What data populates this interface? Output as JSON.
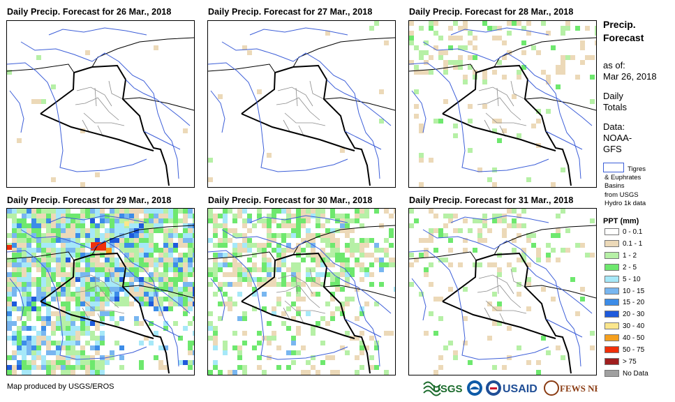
{
  "panels": [
    {
      "title": "Daily Precip. Forecast for 26 Mar., 2018",
      "intensity": 0
    },
    {
      "title": "Daily Precip. Forecast for 27 Mar., 2018",
      "intensity": 0
    },
    {
      "title": "Daily Precip. Forecast for 28 Mar., 2018",
      "intensity": 1
    },
    {
      "title": "Daily Precip. Forecast for 29 Mar., 2018",
      "intensity": 3
    },
    {
      "title": "Daily Precip. Forecast for 30 Mar., 2018",
      "intensity": 2
    },
    {
      "title": "Daily Precip. Forecast for 31 Mar., 2018",
      "intensity": 1
    }
  ],
  "sidebar": {
    "title_line1": "Precip.",
    "title_line2": "Forecast",
    "asof_label": "as of:",
    "asof_date": "Mar 26, 2018",
    "totals_line1": "Daily",
    "totals_line2": "Totals",
    "data_line1": "Data:",
    "data_line2": "NOAA-",
    "data_line3": "GFS",
    "basin_line1": "Tigres",
    "basin_line2": "& Euphrates",
    "basin_line3": "Basins",
    "basin_line4": "from USGS",
    "basin_line5": "Hydro 1k data",
    "basin_color": "#3c5ed8"
  },
  "legend": {
    "title": "PPT (mm)",
    "items": [
      {
        "label": "0 - 0.1",
        "color": "#ffffff"
      },
      {
        "label": "0.1 - 1",
        "color": "#ecd9b8"
      },
      {
        "label": "1 - 2",
        "color": "#b6f0a6"
      },
      {
        "label": "2 - 5",
        "color": "#6ee86e"
      },
      {
        "label": "5 - 10",
        "color": "#a6e8f8"
      },
      {
        "label": "10 - 15",
        "color": "#78b6f0"
      },
      {
        "label": "15 - 20",
        "color": "#3c8ce8"
      },
      {
        "label": "20 - 30",
        "color": "#1e5adc"
      },
      {
        "label": "30 - 40",
        "color": "#fae68c"
      },
      {
        "label": "40 - 50",
        "color": "#f5a01e"
      },
      {
        "label": "50 - 75",
        "color": "#f0300a"
      },
      {
        "label": "> 75",
        "color": "#a01e1e"
      },
      {
        "label": "No Data",
        "color": "#a0a0a0"
      }
    ]
  },
  "footer": {
    "credit": "Map produced by USGS/EROS"
  },
  "logos": {
    "usgs": "USGS",
    "usaid": "USAID",
    "fewsnet": "FEWS NET"
  }
}
